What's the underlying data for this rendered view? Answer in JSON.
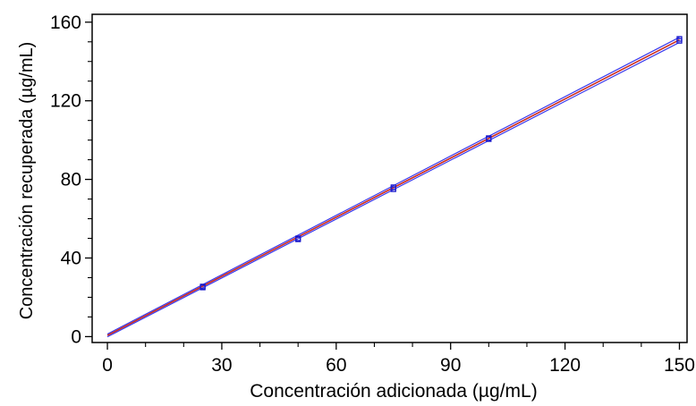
{
  "chart_data": {
    "type": "scatter",
    "title": "",
    "xlabel": "Concentración adicionada (µg/mL)",
    "ylabel": "Concentración recuperada (µg/mL)",
    "xlim": [
      -4,
      152
    ],
    "ylim": [
      -3,
      164
    ],
    "x_ticks": [
      0,
      30,
      60,
      90,
      120,
      150
    ],
    "y_ticks": [
      0,
      40,
      80,
      120,
      160
    ],
    "x_tick_labels": [
      "0",
      "30",
      "60",
      "90",
      "120",
      "150"
    ],
    "y_tick_labels": [
      "0",
      "40",
      "80",
      "120",
      "160"
    ],
    "grid": false,
    "legend": "none",
    "colors": {
      "points": "#1a1acc",
      "fit_line": "#cc2b1e",
      "band_lines": "#3a3aee"
    },
    "points": [
      {
        "x": 25,
        "y": 25.0
      },
      {
        "x": 25,
        "y": 25.5
      },
      {
        "x": 50,
        "y": 49.5
      },
      {
        "x": 50,
        "y": 50.0
      },
      {
        "x": 75,
        "y": 75.0
      },
      {
        "x": 75,
        "y": 76.0
      },
      {
        "x": 100,
        "y": 100.5
      },
      {
        "x": 100,
        "y": 101.0
      },
      {
        "x": 150,
        "y": 150.5
      },
      {
        "x": 150,
        "y": 151.5
      }
    ],
    "fit_line": {
      "x": [
        0,
        150
      ],
      "y": [
        0.6,
        151
      ]
    },
    "band_upper": {
      "x": [
        0,
        150
      ],
      "y": [
        1.3,
        152.3
      ]
    },
    "band_lower": {
      "x": [
        0,
        150
      ],
      "y": [
        -0.1,
        149.7
      ]
    }
  }
}
